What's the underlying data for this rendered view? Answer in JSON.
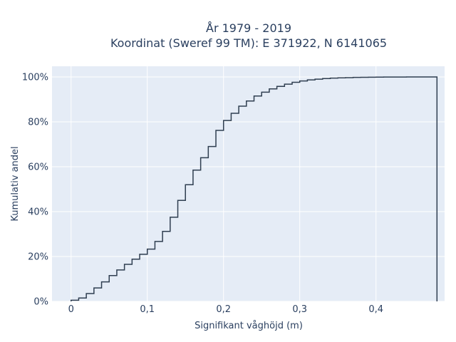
{
  "chart_data": {
    "type": "line",
    "title_line1": "År 1979 - 2019",
    "title_line2": "Koordinat (Sweref 99 TM): E 371922, N 6141065",
    "xlabel": "Signifikant våghöjd (m)",
    "ylabel": "Kumulativ andel",
    "xlim": [
      -0.025,
      0.49
    ],
    "ylim": [
      0,
      1.0
    ],
    "x_ticks": [
      {
        "value": 0,
        "label": "0"
      },
      {
        "value": 0.1,
        "label": "0,1"
      },
      {
        "value": 0.2,
        "label": "0,2"
      },
      {
        "value": 0.3,
        "label": "0,3"
      },
      {
        "value": 0.4,
        "label": "0,4"
      }
    ],
    "y_ticks": [
      {
        "value": 0,
        "label": "0%"
      },
      {
        "value": 0.2,
        "label": "20%"
      },
      {
        "value": 0.4,
        "label": "40%"
      },
      {
        "value": 0.6,
        "label": "60%"
      },
      {
        "value": 0.8,
        "label": "80%"
      },
      {
        "value": 1.0,
        "label": "100%"
      }
    ],
    "bin_width": 0.01,
    "x": [
      0,
      0.01,
      0.02,
      0.03,
      0.04,
      0.05,
      0.06,
      0.07,
      0.08,
      0.09,
      0.1,
      0.11,
      0.12,
      0.13,
      0.14,
      0.15,
      0.16,
      0.17,
      0.18,
      0.19,
      0.2,
      0.21,
      0.22,
      0.23,
      0.24,
      0.25,
      0.26,
      0.27,
      0.28,
      0.29,
      0.3,
      0.31,
      0.32,
      0.33,
      0.34,
      0.35,
      0.36,
      0.37,
      0.38,
      0.39,
      0.4,
      0.41,
      0.42,
      0.43,
      0.44,
      0.45,
      0.46,
      0.47
    ],
    "y": [
      0.005,
      0.015,
      0.035,
      0.06,
      0.087,
      0.115,
      0.14,
      0.165,
      0.188,
      0.21,
      0.233,
      0.267,
      0.312,
      0.375,
      0.45,
      0.52,
      0.585,
      0.64,
      0.69,
      0.762,
      0.806,
      0.838,
      0.87,
      0.893,
      0.915,
      0.932,
      0.947,
      0.958,
      0.968,
      0.976,
      0.982,
      0.987,
      0.99,
      0.993,
      0.995,
      0.996,
      0.997,
      0.998,
      0.9985,
      0.999,
      0.9993,
      0.9995,
      0.9997,
      0.9998,
      0.9999,
      1.0,
      1.0,
      1.0
    ],
    "line_color": "#2f3e50",
    "plot_bg": "#e5ecf6",
    "grid": true
  }
}
